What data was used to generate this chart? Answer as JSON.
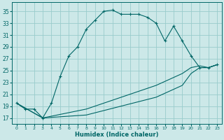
{
  "xlabel": "Humidex (Indice chaleur)",
  "bg_color": "#cce8e8",
  "grid_color": "#99cccc",
  "line_color": "#006666",
  "xlim": [
    -0.5,
    23.5
  ],
  "ylim": [
    16.0,
    36.5
  ],
  "yticks": [
    17,
    19,
    21,
    23,
    25,
    27,
    29,
    31,
    33,
    35
  ],
  "xticks": [
    0,
    1,
    2,
    3,
    4,
    5,
    6,
    7,
    8,
    9,
    10,
    11,
    12,
    13,
    14,
    15,
    16,
    17,
    18,
    19,
    20,
    21,
    22,
    23
  ],
  "main_curve_x": [
    0,
    1,
    2,
    3,
    4,
    5,
    6,
    7,
    8,
    9,
    10,
    11,
    12,
    13,
    14,
    15,
    16,
    17,
    18,
    19,
    20,
    21,
    22,
    23
  ],
  "main_curve_y": [
    19.5,
    18.5,
    18.5,
    17.0,
    19.5,
    24.0,
    27.5,
    29.0,
    32.0,
    33.5,
    35.0,
    35.2,
    34.5,
    34.5,
    34.5,
    34.0,
    33.0,
    30.0,
    32.5,
    30.0,
    27.5,
    25.5,
    25.5,
    26.0
  ],
  "line2_x": [
    0,
    3,
    8,
    12,
    16,
    19,
    20,
    21,
    22,
    23
  ],
  "line2_y": [
    19.5,
    17.0,
    18.5,
    20.5,
    22.5,
    24.5,
    25.5,
    25.8,
    25.5,
    26.0
  ],
  "line3_x": [
    0,
    3,
    8,
    12,
    16,
    19,
    20,
    21,
    22,
    23
  ],
  "line3_y": [
    19.5,
    17.0,
    17.5,
    19.0,
    20.5,
    22.5,
    24.5,
    25.5,
    25.5,
    26.0
  ]
}
